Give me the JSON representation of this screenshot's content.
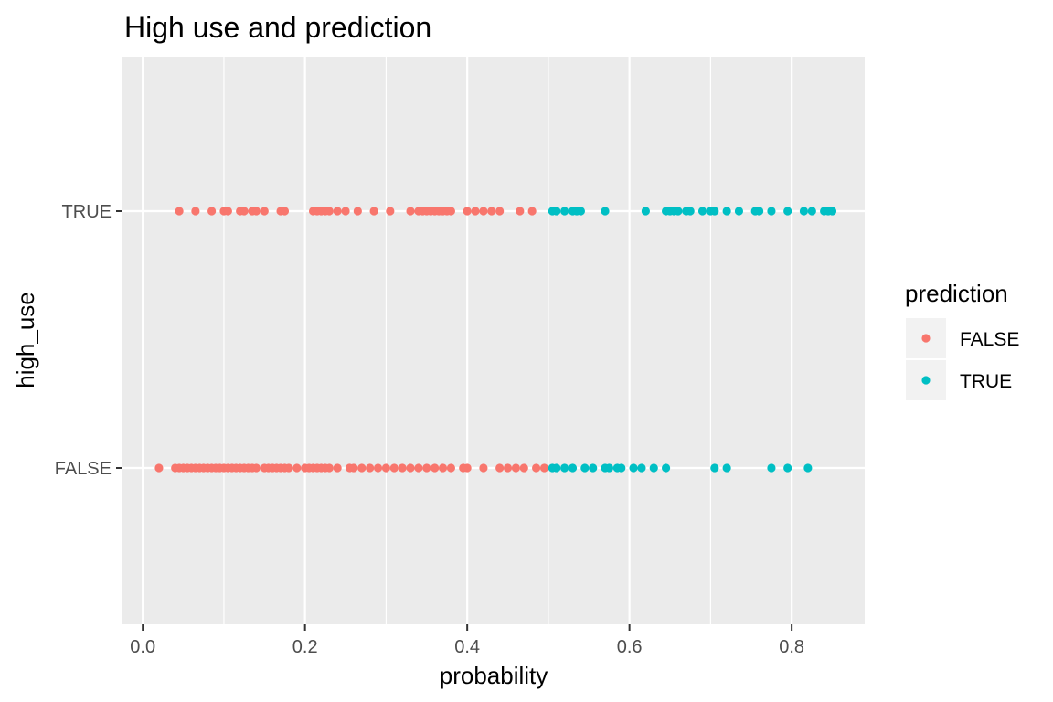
{
  "chart_data": {
    "type": "scatter",
    "title": "High use and prediction",
    "xlabel": "probability",
    "ylabel": "high_use",
    "xlim": [
      -0.025,
      0.89
    ],
    "x_ticks": [
      0.0,
      0.2,
      0.4,
      0.6,
      0.8
    ],
    "x_tick_labels": [
      "0.0",
      "0.2",
      "0.4",
      "0.6",
      "0.8"
    ],
    "y_categories": [
      "FALSE",
      "TRUE"
    ],
    "grid": true,
    "legend": {
      "title": "prediction",
      "position": "right",
      "entries": [
        {
          "label": "FALSE",
          "color": "#F8766D"
        },
        {
          "label": "TRUE",
          "color": "#00BFC4"
        }
      ]
    },
    "series": [
      {
        "name": "FALSE",
        "color": "#F8766D",
        "points": [
          {
            "high_use": "TRUE",
            "x": [
              0.045,
              0.065,
              0.085,
              0.1,
              0.105,
              0.12,
              0.125,
              0.135,
              0.14,
              0.15,
              0.17,
              0.175,
              0.21,
              0.215,
              0.22,
              0.225,
              0.23,
              0.24,
              0.25,
              0.265,
              0.285,
              0.305,
              0.33,
              0.34,
              0.345,
              0.35,
              0.355,
              0.36,
              0.365,
              0.37,
              0.375,
              0.38,
              0.4,
              0.41,
              0.42,
              0.43,
              0.44,
              0.465,
              0.48
            ]
          },
          {
            "high_use": "FALSE",
            "x": [
              0.02,
              0.04,
              0.045,
              0.05,
              0.055,
              0.06,
              0.065,
              0.07,
              0.075,
              0.08,
              0.085,
              0.09,
              0.095,
              0.1,
              0.105,
              0.11,
              0.115,
              0.12,
              0.125,
              0.13,
              0.135,
              0.14,
              0.15,
              0.155,
              0.16,
              0.165,
              0.17,
              0.175,
              0.18,
              0.19,
              0.2,
              0.205,
              0.21,
              0.215,
              0.22,
              0.225,
              0.23,
              0.24,
              0.255,
              0.26,
              0.27,
              0.28,
              0.29,
              0.3,
              0.31,
              0.32,
              0.33,
              0.34,
              0.35,
              0.36,
              0.37,
              0.38,
              0.395,
              0.4,
              0.42,
              0.44,
              0.45,
              0.46,
              0.47,
              0.485,
              0.495
            ]
          }
        ]
      },
      {
        "name": "TRUE",
        "color": "#00BFC4",
        "points": [
          {
            "high_use": "TRUE",
            "x": [
              0.505,
              0.51,
              0.52,
              0.53,
              0.535,
              0.54,
              0.57,
              0.62,
              0.645,
              0.65,
              0.655,
              0.66,
              0.67,
              0.675,
              0.69,
              0.7,
              0.705,
              0.72,
              0.735,
              0.755,
              0.76,
              0.775,
              0.795,
              0.815,
              0.825,
              0.84,
              0.845,
              0.85
            ]
          },
          {
            "high_use": "FALSE",
            "x": [
              0.505,
              0.51,
              0.52,
              0.53,
              0.545,
              0.555,
              0.57,
              0.575,
              0.585,
              0.59,
              0.605,
              0.615,
              0.63,
              0.645,
              0.705,
              0.72,
              0.775,
              0.795,
              0.82
            ]
          }
        ]
      }
    ]
  }
}
